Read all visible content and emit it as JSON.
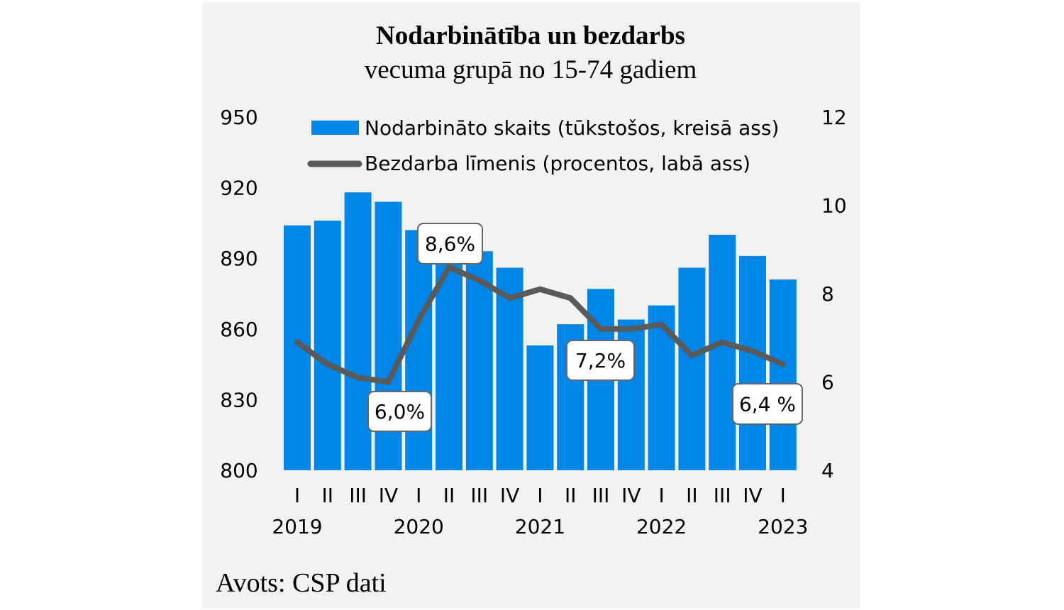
{
  "chart_data": {
    "type": "bar",
    "title": "Nodarbinātība un bezdarbs",
    "subtitle": "vecuma grupā no 15-74 gadiem",
    "source": "Avots: CSP dati",
    "categories": [
      "I",
      "II",
      "III",
      "IV",
      "I",
      "II",
      "III",
      "IV",
      "I",
      "II",
      "III",
      "IV",
      "I",
      "II",
      "III",
      "IV",
      "I"
    ],
    "years": [
      {
        "label": "2019",
        "index": 0
      },
      {
        "label": "2020",
        "index": 4
      },
      {
        "label": "2021",
        "index": 8
      },
      {
        "label": "2022",
        "index": 12
      },
      {
        "label": "2023",
        "index": 16
      }
    ],
    "series": [
      {
        "name": "Nodarbināto skaits (tūkstošos, kreisā ass)",
        "type": "bar",
        "axis": "left",
        "color": "#0086e8",
        "values": [
          904,
          906,
          918,
          914,
          902,
          896,
          893,
          886,
          853,
          862,
          877,
          864,
          870,
          886,
          900,
          891,
          881
        ]
      },
      {
        "name": "Bezdarba līmenis (procentos, labā ass)",
        "type": "line",
        "axis": "right",
        "color": "#5a5a5a",
        "values": [
          6.9,
          6.4,
          6.1,
          6.0,
          7.4,
          8.6,
          8.3,
          7.9,
          8.1,
          7.9,
          7.2,
          7.2,
          7.3,
          6.6,
          6.9,
          6.7,
          6.4
        ]
      }
    ],
    "left_axis": {
      "ylim": [
        800,
        950
      ],
      "ticks": [
        "800",
        "830",
        "860",
        "890",
        "920",
        "950"
      ]
    },
    "right_axis": {
      "ylim": [
        4,
        12
      ],
      "ticks": [
        "4",
        "6",
        "8",
        "10",
        "12"
      ]
    },
    "annotations": [
      {
        "text": "6,0%",
        "index": 3
      },
      {
        "text": "8,6%",
        "index": 5
      },
      {
        "text": "7,2%",
        "index": 10
      },
      {
        "text": "6,4 %",
        "index": 16
      }
    ],
    "legend": "top",
    "grid": false
  }
}
